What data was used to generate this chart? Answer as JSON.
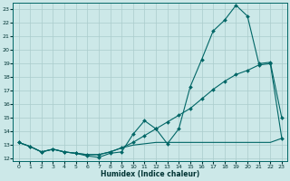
{
  "xlabel": "Humidex (Indice chaleur)",
  "bg_color": "#cce8e8",
  "grid_color": "#aacccc",
  "line_color": "#006666",
  "xlim": [
    -0.5,
    23.5
  ],
  "ylim": [
    11.8,
    23.5
  ],
  "yticks": [
    12,
    13,
    14,
    15,
    16,
    17,
    18,
    19,
    20,
    21,
    22,
    23
  ],
  "xticks": [
    0,
    1,
    2,
    3,
    4,
    5,
    6,
    7,
    8,
    9,
    10,
    11,
    12,
    13,
    14,
    15,
    16,
    17,
    18,
    19,
    20,
    21,
    22,
    23
  ],
  "line1_x": [
    0,
    1,
    2,
    3,
    4,
    5,
    6,
    7,
    8,
    9,
    10,
    11,
    12,
    13,
    14,
    15,
    16,
    17,
    18,
    19,
    20,
    21,
    22,
    23
  ],
  "line1_y": [
    13.2,
    12.9,
    12.5,
    12.7,
    12.5,
    12.4,
    12.2,
    12.1,
    12.4,
    12.5,
    13.8,
    14.8,
    14.2,
    13.1,
    14.2,
    17.3,
    19.3,
    21.4,
    22.2,
    23.3,
    22.5,
    19.0,
    19.1,
    15.0
  ],
  "line2_x": [
    0,
    1,
    2,
    3,
    4,
    5,
    6,
    7,
    8,
    9,
    10,
    11,
    12,
    13,
    14,
    15,
    16,
    17,
    18,
    19,
    20,
    21,
    22,
    23
  ],
  "line2_y": [
    13.2,
    12.9,
    12.5,
    12.7,
    12.5,
    12.4,
    12.3,
    12.3,
    12.5,
    12.8,
    13.2,
    13.7,
    14.2,
    14.7,
    15.2,
    15.7,
    16.4,
    17.1,
    17.7,
    18.2,
    18.5,
    18.9,
    19.0,
    13.5
  ],
  "line3_x": [
    0,
    1,
    2,
    3,
    4,
    5,
    6,
    7,
    8,
    9,
    10,
    11,
    12,
    13,
    14,
    15,
    16,
    17,
    18,
    19,
    20,
    21,
    22,
    23
  ],
  "line3_y": [
    13.2,
    12.9,
    12.5,
    12.7,
    12.5,
    12.4,
    12.3,
    12.3,
    12.5,
    12.8,
    13.0,
    13.1,
    13.2,
    13.2,
    13.2,
    13.2,
    13.2,
    13.2,
    13.2,
    13.2,
    13.2,
    13.2,
    13.2,
    13.5
  ]
}
